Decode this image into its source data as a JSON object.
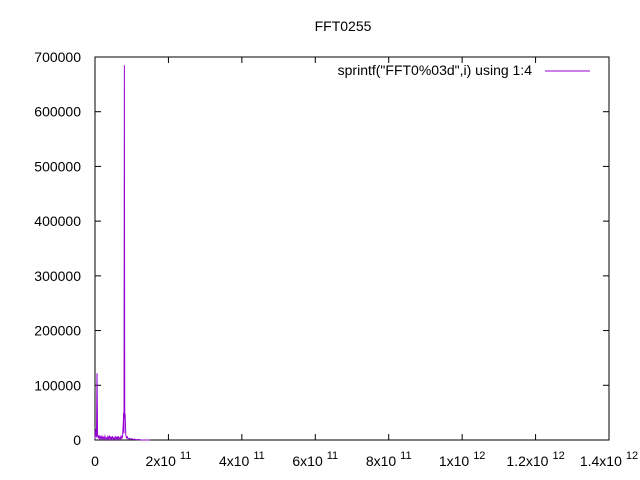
{
  "chart_data": {
    "type": "line",
    "title": "FFT0255",
    "xlabel": "",
    "ylabel": "",
    "xlim": [
      0,
      1400000000000
    ],
    "ylim": [
      0,
      700000
    ],
    "grid": false,
    "legend_position": "top-right",
    "x_ticks": [
      {
        "value": 0,
        "base": "0",
        "exp": ""
      },
      {
        "value": 200000000000,
        "base": "2x10",
        "exp": "11"
      },
      {
        "value": 400000000000,
        "base": "4x10",
        "exp": "11"
      },
      {
        "value": 600000000000,
        "base": "6x10",
        "exp": "11"
      },
      {
        "value": 800000000000,
        "base": "8x10",
        "exp": "11"
      },
      {
        "value": 1000000000000,
        "base": "1x10",
        "exp": "12"
      },
      {
        "value": 1200000000000,
        "base": "1.2x10",
        "exp": "12"
      },
      {
        "value": 1400000000000,
        "base": "1.4x10",
        "exp": "12"
      }
    ],
    "y_ticks": [
      {
        "value": 0,
        "label": "0"
      },
      {
        "value": 100000,
        "label": "100000"
      },
      {
        "value": 200000,
        "label": "200000"
      },
      {
        "value": 300000,
        "label": "300000"
      },
      {
        "value": 400000,
        "label": "400000"
      },
      {
        "value": 500000,
        "label": "500000"
      },
      {
        "value": 600000,
        "label": "600000"
      },
      {
        "value": 700000,
        "label": "700000"
      }
    ],
    "series": [
      {
        "name": "sprintf(\"FFT0%03d\",i) using 1:4",
        "color": "#9400d3",
        "points": [
          [
            0,
            2000
          ],
          [
            2000000000,
            20000
          ],
          [
            4000000000,
            5000
          ],
          [
            5500000000,
            122000
          ],
          [
            7000000000,
            8000
          ],
          [
            9000000000,
            3000
          ],
          [
            11000000000,
            9000
          ],
          [
            13000000000,
            2000
          ],
          [
            15000000000,
            6000
          ],
          [
            17000000000,
            1500
          ],
          [
            19000000000,
            8000
          ],
          [
            21000000000,
            2000
          ],
          [
            23000000000,
            5000
          ],
          [
            25000000000,
            1000
          ],
          [
            27000000000,
            7000
          ],
          [
            29000000000,
            2500
          ],
          [
            31000000000,
            4000
          ],
          [
            33000000000,
            1000
          ],
          [
            35000000000,
            6000
          ],
          [
            37000000000,
            2000
          ],
          [
            39000000000,
            8000
          ],
          [
            41000000000,
            1500
          ],
          [
            43000000000,
            5000
          ],
          [
            45000000000,
            2000
          ],
          [
            47000000000,
            7000
          ],
          [
            49000000000,
            1000
          ],
          [
            51000000000,
            4000
          ],
          [
            53000000000,
            1500
          ],
          [
            55000000000,
            6000
          ],
          [
            57000000000,
            2000
          ],
          [
            59000000000,
            5000
          ],
          [
            61000000000,
            1000
          ],
          [
            63000000000,
            7000
          ],
          [
            65000000000,
            2000
          ],
          [
            67000000000,
            4000
          ],
          [
            69000000000,
            1500
          ],
          [
            71000000000,
            8000
          ],
          [
            73000000000,
            3000
          ],
          [
            75000000000,
            6000
          ],
          [
            77000000000,
            30000
          ],
          [
            78000000000,
            50000
          ],
          [
            79000000000,
            12000
          ],
          [
            80000000000,
            685000
          ],
          [
            81000000000,
            40000
          ],
          [
            82000000000,
            48000
          ],
          [
            84000000000,
            8000
          ],
          [
            86000000000,
            4000
          ],
          [
            88000000000,
            6000
          ],
          [
            90000000000,
            2000
          ],
          [
            93000000000,
            3000
          ],
          [
            96000000000,
            1500
          ],
          [
            100000000000,
            2500
          ],
          [
            104000000000,
            1000
          ],
          [
            108000000000,
            1500
          ],
          [
            112000000000,
            500
          ],
          [
            118000000000,
            800
          ],
          [
            125000000000,
            200
          ],
          [
            135000000000,
            100
          ],
          [
            150000000000,
            0
          ]
        ]
      }
    ]
  }
}
